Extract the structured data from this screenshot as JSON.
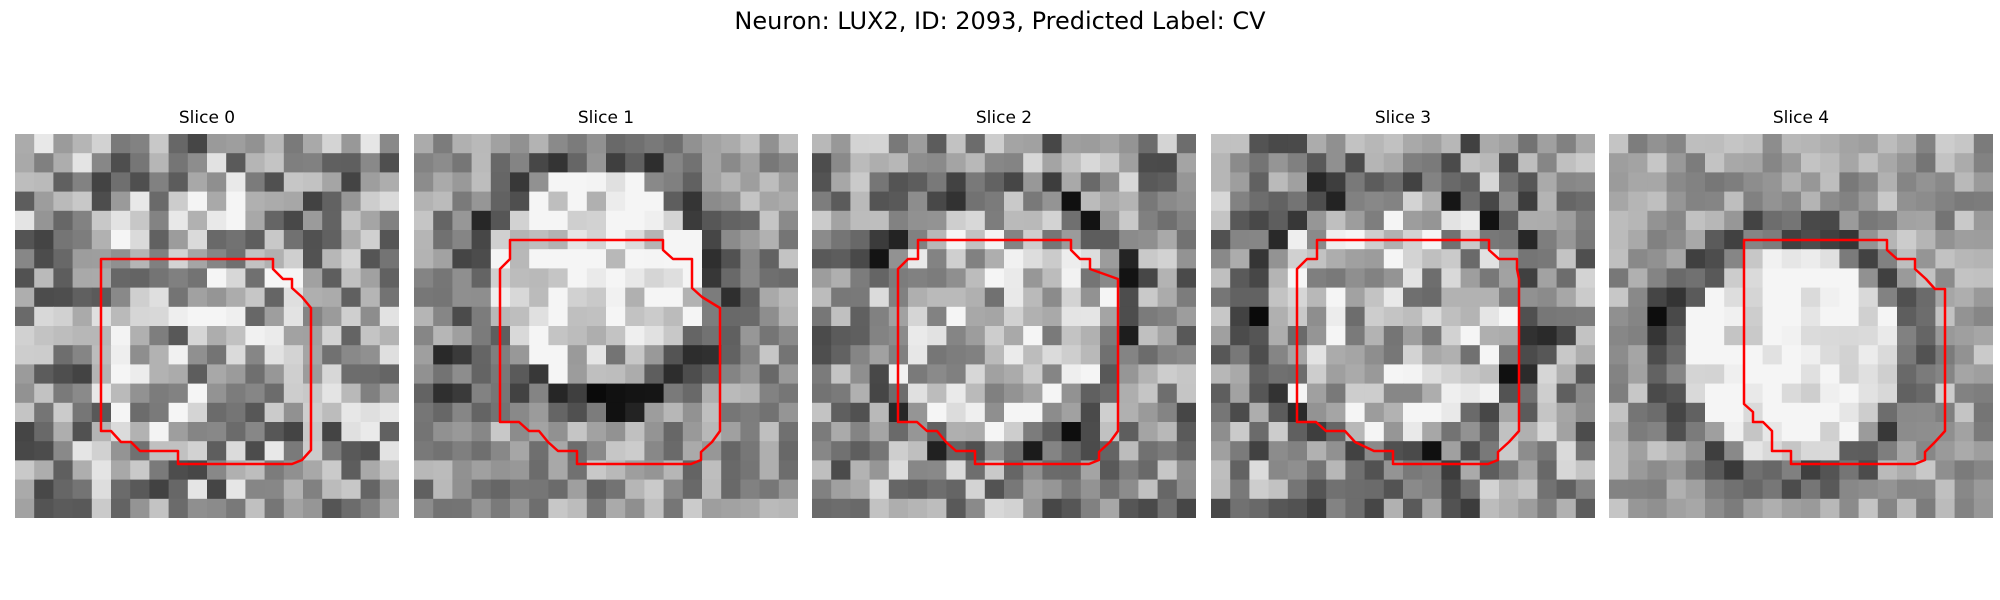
{
  "figure": {
    "title": "Neuron: LUX2, ID: 2093, Predicted Label: CV",
    "outline_color": "#ff0000",
    "colormap": "gray"
  },
  "slices": [
    {
      "title": "Slice 0"
    },
    {
      "title": "Slice 1"
    },
    {
      "title": "Slice 2"
    },
    {
      "title": "Slice 3"
    },
    {
      "title": "Slice 4"
    }
  ]
}
